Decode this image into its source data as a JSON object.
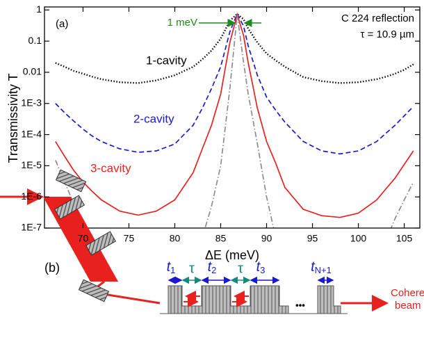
{
  "chart_data": {
    "type": "line",
    "log_y": true,
    "ylabel": "Transmissivity T",
    "xlabel": "ΔE (meV)",
    "x": [
      67,
      68,
      69,
      70,
      71,
      72,
      74,
      76,
      78,
      80,
      82,
      83,
      84,
      85,
      86,
      86.8,
      87.5,
      88,
      89,
      90,
      91,
      92,
      94,
      96,
      98,
      100,
      102,
      103,
      104,
      105,
      106
    ],
    "series": [
      {
        "name": "1-cavity",
        "color": "#000000",
        "dash": "dotted",
        "values": [
          0.02,
          0.015,
          0.011,
          0.009,
          0.0072,
          0.006,
          0.0048,
          0.0045,
          0.0055,
          0.008,
          0.015,
          0.026,
          0.05,
          0.12,
          0.45,
          0.75,
          0.5,
          0.25,
          0.09,
          0.04,
          0.024,
          0.015,
          0.007,
          0.0052,
          0.0045,
          0.0048,
          0.006,
          0.0072,
          0.009,
          0.012,
          0.018
        ]
      },
      {
        "name": "2-cavity",
        "color": "#1a1acc",
        "dash": "dashed",
        "values": [
          0.001,
          0.0005,
          0.00027,
          0.00015,
          9e-05,
          6e-05,
          3.5e-05,
          2.7e-05,
          3e-05,
          5e-05,
          0.0002,
          0.0007,
          0.003,
          0.015,
          0.2,
          0.75,
          0.3,
          0.07,
          0.008,
          0.0016,
          0.0006,
          0.00025,
          6e-05,
          3e-05,
          2.4e-05,
          3e-05,
          6e-05,
          0.00011,
          0.0002,
          0.0004,
          0.0008
        ]
      },
      {
        "name": "3-cavity",
        "color": "#e8201e",
        "dash": "solid",
        "values": [
          6e-05,
          2e-05,
          7e-06,
          3e-06,
          1.5e-06,
          8e-07,
          3.5e-07,
          2.6e-07,
          3.5e-07,
          8e-07,
          6e-06,
          3.5e-05,
          0.0002,
          0.002,
          0.09,
          0.72,
          0.15,
          0.02,
          0.0007,
          6e-05,
          1.2e-05,
          2e-06,
          4e-07,
          2.5e-07,
          2.2e-07,
          3e-07,
          8e-07,
          1.8e-06,
          4e-06,
          1.1e-05,
          3e-05
        ]
      },
      {
        "color": "#8c8c8c",
        "dash": "dashdot",
        "values": [
          1.5e-05,
          3e-06,
          6e-07,
          1.2e-07,
          2e-08,
          null,
          null,
          null,
          null,
          null,
          null,
          5e-08,
          5e-07,
          1e-05,
          0.003,
          0.72,
          0.02,
          0.002,
          5e-05,
          1e-06,
          5e-08,
          null,
          null,
          null,
          null,
          null,
          null,
          4e-08,
          2e-07,
          8e-07,
          3e-06
        ]
      }
    ],
    "xlim": [
      65.8,
      106.7
    ],
    "ylim": [
      1e-07,
      1.25
    ],
    "xticks": [
      70,
      75,
      80,
      85,
      90,
      95,
      100,
      105
    ],
    "yticks": [
      1,
      0.1,
      0.01,
      {
        "value": 0.001,
        "label": "1E-3"
      },
      {
        "value": 0.0001,
        "label": "1E-4"
      },
      {
        "value": 1e-05,
        "label": "1E-5"
      },
      {
        "value": 1e-06,
        "label": "1E-6"
      },
      {
        "value": 1e-07,
        "label": "1E-7"
      }
    ],
    "annotations": {
      "panel": "(a)",
      "reflection": "C 224 reflection",
      "tau": "τ = 10.9 µm",
      "width": "1 meV"
    }
  },
  "diagram": {
    "panel": "(b)",
    "pulses": [
      {
        "main": "t",
        "sub": "1"
      },
      {
        "main": "t",
        "sub": "2"
      },
      {
        "main": "t",
        "sub": "3"
      },
      {
        "main": "t",
        "sub": "N+1"
      }
    ],
    "gap": "τ",
    "ellipsis": "•••",
    "output": [
      "Coherent",
      "beam"
    ]
  }
}
